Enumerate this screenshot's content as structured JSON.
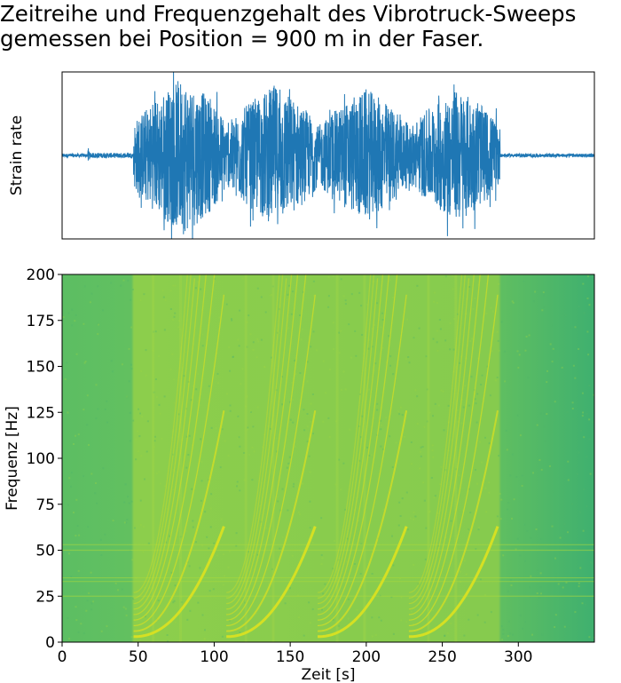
{
  "title_lines": [
    "Zeitreihe und Frequenzgehalt des Vibrotruck-Sweeps",
    "gemessen bei Position = 900 m in der Faser."
  ],
  "chart_data": [
    {
      "type": "line",
      "panel": "timeseries",
      "ylabel": "Strain rate",
      "xlim": [
        0,
        350
      ],
      "ylim": [
        -1.0,
        1.0
      ],
      "show_ticks": false,
      "series_color": "#1f77b4",
      "envelope": {
        "description_units": "x in s, amplitude normalized",
        "segments": [
          {
            "x": [
              0,
              17
            ],
            "amp": 0.02
          },
          {
            "x": [
              17,
              18
            ],
            "amp": 0.1
          },
          {
            "x": [
              18,
              47
            ],
            "amp": 0.03
          },
          {
            "x": [
              47,
              108
            ],
            "amp_peak": 0.95,
            "peak_x": 80
          },
          {
            "x": [
              108,
              168
            ],
            "amp_peak": 0.85,
            "peak_x": 140
          },
          {
            "x": [
              168,
              228
            ],
            "amp_peak": 0.8,
            "peak_x": 200
          },
          {
            "x": [
              228,
              288
            ],
            "amp_peak": 0.8,
            "peak_x": 260
          },
          {
            "x": [
              288,
              350
            ],
            "amp": 0.02
          }
        ]
      }
    },
    {
      "type": "heatmap",
      "panel": "spectrogram",
      "xlabel": "Zeit [s]",
      "ylabel": "Frequenz [Hz]",
      "xlim": [
        0,
        350
      ],
      "ylim": [
        0,
        200
      ],
      "xticks": [
        0,
        50,
        100,
        150,
        200,
        250,
        300
      ],
      "yticks": [
        0,
        25,
        50,
        75,
        100,
        125,
        150,
        175,
        200
      ],
      "colormap": "viridis",
      "background_color": "#5cbf63",
      "active_color": "#8fce4a",
      "sweep_color": "#d9e021",
      "sweeps": [
        {
          "start": 47,
          "end": 107
        },
        {
          "start": 108,
          "end": 167
        },
        {
          "start": 168,
          "end": 227
        },
        {
          "start": 228,
          "end": 287
        }
      ],
      "noise_lines_hz": [
        25,
        33,
        35,
        50,
        53
      ]
    }
  ]
}
